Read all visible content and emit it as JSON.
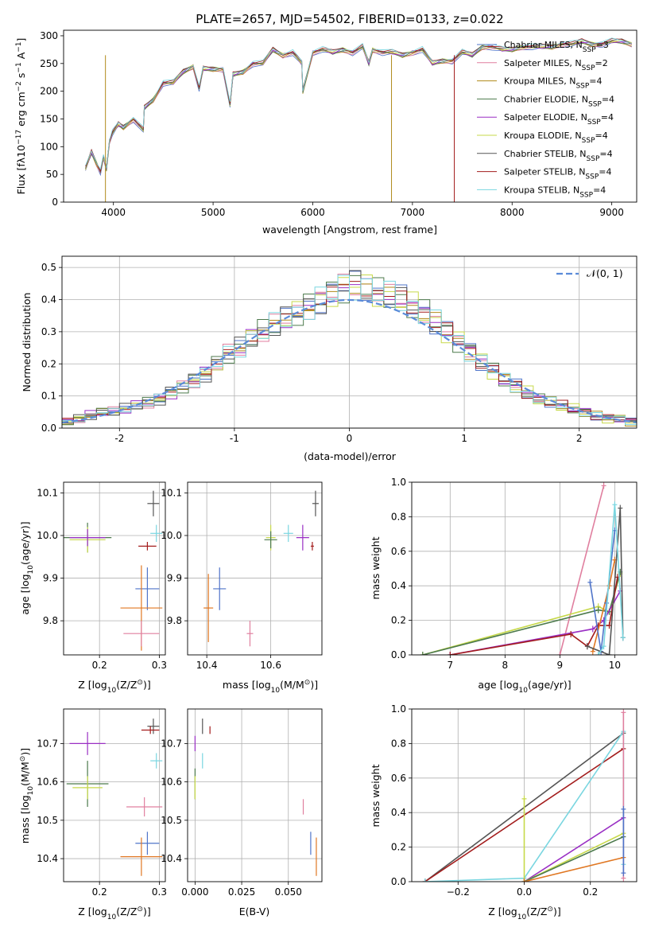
{
  "figure_title": "PLATE=2657, MJD=54502, FIBERID=0133, z=0.022",
  "colors": {
    "chabrier_miles": "#4f74c9",
    "salpeter_miles": "#e07f9f",
    "kroupa_miles": "#b08a1a",
    "chabrier_elodie": "#4c7a4c",
    "salpeter_elodie": "#9a2fc4",
    "kroupa_elodie": "#c7d94a",
    "chabrier_stelib": "#555555",
    "salpeter_stelib": "#a31c1c",
    "kroupa_stelib": "#7ad6e0",
    "gauss": "#5b8bd9",
    "orange": "#e07722"
  },
  "chart_data": [
    {
      "id": "spectrum",
      "type": "line",
      "title": "PLATE=2657, MJD=54502, FIBERID=0133, z=0.022",
      "xlabel": "wavelength [Angstrom, rest frame]",
      "ylabel_parts": [
        "Flux [f",
        "λ",
        "10",
        "−17",
        " erg cm",
        "−2",
        " s",
        "−1",
        " A",
        "−1",
        "]"
      ],
      "xlim": [
        3500,
        9250
      ],
      "ylim": [
        0,
        310
      ],
      "xticks": [
        4000,
        5000,
        6000,
        7000,
        8000,
        9000
      ],
      "yticks": [
        0,
        50,
        100,
        150,
        200,
        250,
        300
      ],
      "x": [
        3720,
        3780,
        3830,
        3870,
        3900,
        3930,
        3960,
        3990,
        4050,
        4100,
        4200,
        4300,
        4310,
        4400,
        4500,
        4600,
        4700,
        4800,
        4860,
        4900,
        5000,
        5100,
        5170,
        5200,
        5300,
        5400,
        5500,
        5600,
        5700,
        5800,
        5890,
        5900,
        6000,
        6100,
        6200,
        6300,
        6400,
        6500,
        6563,
        6600,
        6700,
        6800,
        6900,
        7000,
        7100,
        7200,
        7300,
        7400,
        7500,
        7600,
        7700,
        7800,
        7900,
        8000,
        8100,
        8200,
        8300,
        8400,
        8500,
        8600,
        8700,
        8800,
        8900,
        9000,
        9100,
        9200
      ],
      "y": [
        60,
        90,
        70,
        55,
        80,
        60,
        110,
        125,
        140,
        135,
        150,
        130,
        170,
        185,
        215,
        215,
        235,
        245,
        205,
        240,
        240,
        240,
        175,
        230,
        235,
        250,
        250,
        275,
        265,
        270,
        250,
        200,
        270,
        275,
        270,
        275,
        270,
        280,
        250,
        275,
        270,
        270,
        265,
        270,
        275,
        250,
        255,
        255,
        270,
        265,
        280,
        280,
        275,
        275,
        280,
        280,
        280,
        280,
        285,
        285,
        290,
        285,
        285,
        290,
        290,
        285
      ],
      "dropouts": [
        {
          "series": "Kroupa MILES",
          "x": 3920
        },
        {
          "series": "Kroupa MILES",
          "x": 6790
        },
        {
          "series": "Salpeter STELIB",
          "x": 7420
        }
      ],
      "legend_position": "top-right",
      "legend": [
        {
          "base": "Chabrier MILES, N",
          "sub": "SSP",
          "val": "=3",
          "color": "#4f74c9"
        },
        {
          "base": "Salpeter MILES, N",
          "sub": "SSP",
          "val": "=2",
          "color": "#e07f9f"
        },
        {
          "base": "Kroupa MILES, N",
          "sub": "SSP",
          "val": "=4",
          "color": "#b08a1a"
        },
        {
          "base": "Chabrier ELODIE, N",
          "sub": "SSP",
          "val": "=4",
          "color": "#4c7a4c"
        },
        {
          "base": "Salpeter ELODIE, N",
          "sub": "SSP",
          "val": "=4",
          "color": "#9a2fc4"
        },
        {
          "base": "Kroupa ELODIE, N",
          "sub": "SSP",
          "val": "=4",
          "color": "#c7d94a"
        },
        {
          "base": "Chabrier STELIB, N",
          "sub": "SSP",
          "val": "=4",
          "color": "#555555"
        },
        {
          "base": "Salpeter STELIB, N",
          "sub": "SSP",
          "val": "=4",
          "color": "#a31c1c"
        },
        {
          "base": "Kroupa STELIB, N",
          "sub": "SSP",
          "val": "=4",
          "color": "#7ad6e0"
        }
      ],
      "grid": false
    },
    {
      "id": "residuals",
      "type": "histogram",
      "xlabel": "(data-model)/error",
      "ylabel": "Normed distribution",
      "xlim": [
        -2.5,
        2.5
      ],
      "ylim": [
        0,
        0.535
      ],
      "xticks": [
        -2,
        -1,
        0,
        1,
        2
      ],
      "yticks": [
        0.0,
        0.1,
        0.2,
        0.3,
        0.4,
        0.5
      ],
      "bin_edges_start": -2.5,
      "bin_width": 0.1,
      "histogram": [
        0.02,
        0.03,
        0.04,
        0.05,
        0.05,
        0.06,
        0.07,
        0.08,
        0.09,
        0.11,
        0.13,
        0.15,
        0.17,
        0.2,
        0.23,
        0.25,
        0.28,
        0.3,
        0.32,
        0.34,
        0.36,
        0.38,
        0.4,
        0.42,
        0.44,
        0.45,
        0.44,
        0.42,
        0.41,
        0.4,
        0.38,
        0.36,
        0.33,
        0.3,
        0.27,
        0.24,
        0.21,
        0.18,
        0.15,
        0.13,
        0.11,
        0.09,
        0.08,
        0.07,
        0.06,
        0.05,
        0.04,
        0.03,
        0.03,
        0.02
      ],
      "gauss_legend_parts": [
        "𝒩",
        "(0, 1)"
      ],
      "legend_position": "top-right",
      "grid": true
    },
    {
      "id": "z_age",
      "type": "scatter",
      "xlabel_parts": [
        "Z [log",
        "10",
        "(Z/Z",
        "⊙",
        ")]"
      ],
      "ylabel_parts": [
        "age  [log",
        "10",
        "(age/yr)]"
      ],
      "xlim": [
        0.14,
        0.31
      ],
      "ylim": [
        9.72,
        10.125
      ],
      "xticks": [
        0.2,
        0.3
      ],
      "yticks": [
        9.8,
        9.9,
        10.0,
        10.1
      ],
      "points": [
        {
          "x": 0.29,
          "y": 10.075,
          "xerr": 0.01,
          "yerr": 0.03,
          "color": "#555555"
        },
        {
          "x": 0.295,
          "y": 10.005,
          "xerr": 0.01,
          "yerr": 0.02,
          "color": "#7ad6e0"
        },
        {
          "x": 0.18,
          "y": 9.995,
          "xerr": 0.04,
          "yerr": 0.035,
          "color": "#4c7a4c"
        },
        {
          "x": 0.18,
          "y": 9.99,
          "xerr": 0.03,
          "yerr": 0.03,
          "color": "#c7d94a"
        },
        {
          "x": 0.18,
          "y": 9.995,
          "xerr": 0.03,
          "yerr": 0.02,
          "color": "#9a2fc4"
        },
        {
          "x": 0.28,
          "y": 9.975,
          "xerr": 0.015,
          "yerr": 0.01,
          "color": "#a31c1c"
        },
        {
          "x": 0.28,
          "y": 9.875,
          "xerr": 0.02,
          "yerr": 0.05,
          "color": "#4f74c9"
        },
        {
          "x": 0.27,
          "y": 9.83,
          "xerr": 0.035,
          "yerr": 0.1,
          "color": "#e07722"
        },
        {
          "x": 0.27,
          "y": 9.77,
          "xerr": 0.03,
          "yerr": 0.03,
          "color": "#e07f9f"
        }
      ],
      "grid": true
    },
    {
      "id": "mass_age",
      "type": "scatter",
      "xlabel_parts": [
        "mass [log",
        "10",
        "(M/M",
        "⊙",
        ")]"
      ],
      "ylabel_parts": [],
      "xlim": [
        10.34,
        10.76
      ],
      "ylim": [
        9.72,
        10.125
      ],
      "xticks": [
        10.4,
        10.6
      ],
      "yticks": [
        9.8,
        9.9,
        10.0,
        10.1
      ],
      "points": [
        {
          "x": 10.74,
          "y": 10.075,
          "xerr": 0.01,
          "yerr": 0.03,
          "color": "#555555"
        },
        {
          "x": 10.655,
          "y": 10.005,
          "xerr": 0.015,
          "yerr": 0.02,
          "color": "#7ad6e0"
        },
        {
          "x": 10.6,
          "y": 9.995,
          "xerr": 0.015,
          "yerr": 0.03,
          "color": "#c7d94a"
        },
        {
          "x": 10.6,
          "y": 9.99,
          "xerr": 0.02,
          "yerr": 0.02,
          "color": "#4c7a4c"
        },
        {
          "x": 10.7,
          "y": 9.995,
          "xerr": 0.02,
          "yerr": 0.03,
          "color": "#9a2fc4"
        },
        {
          "x": 10.73,
          "y": 9.975,
          "xerr": 0.005,
          "yerr": 0.01,
          "color": "#a31c1c"
        },
        {
          "x": 10.44,
          "y": 9.875,
          "xerr": 0.02,
          "yerr": 0.05,
          "color": "#4f74c9"
        },
        {
          "x": 10.405,
          "y": 9.83,
          "xerr": 0.015,
          "yerr": 0.08,
          "color": "#e07722"
        },
        {
          "x": 10.535,
          "y": 9.77,
          "xerr": 0.01,
          "yerr": 0.03,
          "color": "#e07f9f"
        }
      ],
      "grid": true
    },
    {
      "id": "age_weight",
      "type": "line",
      "xlabel_parts": [
        "age  [log",
        "10",
        "(age/yr)]"
      ],
      "ylabel": "mass weight",
      "xlim": [
        6.3,
        10.4
      ],
      "ylim": [
        0,
        1.0
      ],
      "xticks": [
        7,
        8,
        9,
        10
      ],
      "yticks": [
        0.0,
        0.2,
        0.4,
        0.6,
        0.8,
        1.0
      ],
      "series": [
        {
          "color": "#e07f9f",
          "x": [
            9.0,
            9.8
          ],
          "y": [
            0.0,
            0.98
          ]
        },
        {
          "color": "#c7d94a",
          "x": [
            6.5,
            9.7,
            9.9,
            10.1
          ],
          "y": [
            0.0,
            0.28,
            0.25,
            0.47
          ]
        },
        {
          "color": "#4c7a4c",
          "x": [
            6.5,
            9.7,
            9.9,
            10.1
          ],
          "y": [
            0.0,
            0.26,
            0.25,
            0.48
          ]
        },
        {
          "color": "#9a2fc4",
          "x": [
            7.0,
            9.6,
            9.8,
            10.1
          ],
          "y": [
            0.0,
            0.15,
            0.2,
            0.37
          ]
        },
        {
          "color": "#a31c1c",
          "x": [
            7.0,
            9.2,
            9.5,
            9.7,
            9.9,
            10.05
          ],
          "y": [
            0.0,
            0.12,
            0.05,
            0.17,
            0.17,
            0.45
          ]
        },
        {
          "color": "#e07722",
          "x": [
            9.6,
            9.9,
            10.0
          ],
          "y": [
            0.02,
            0.4,
            0.55
          ]
        },
        {
          "color": "#4f74c9",
          "x": [
            9.55,
            9.75,
            9.85,
            10.0
          ],
          "y": [
            0.42,
            0.02,
            0.3,
            0.72
          ]
        },
        {
          "color": "#555555",
          "x": [
            9.5,
            9.9,
            10.1,
            10.15
          ],
          "y": [
            0.05,
            0.0,
            0.85,
            0.1
          ]
        },
        {
          "color": "#7ad6e0",
          "x": [
            9.7,
            9.8,
            10.0,
            10.15
          ],
          "y": [
            0.0,
            0.05,
            0.87,
            0.1
          ]
        }
      ],
      "grid": true
    },
    {
      "id": "z_mass",
      "type": "scatter",
      "xlabel_parts": [
        "Z [log",
        "10",
        "(Z/Z",
        "⊙",
        ")]"
      ],
      "ylabel_parts": [
        "mass [log",
        "10",
        "(M/M",
        "⊙",
        ")]"
      ],
      "xlim": [
        0.14,
        0.31
      ],
      "ylim": [
        10.34,
        10.79
      ],
      "xticks": [
        0.2,
        0.3
      ],
      "yticks": [
        10.4,
        10.5,
        10.6,
        10.7
      ],
      "points": [
        {
          "x": 0.29,
          "y": 10.745,
          "xerr": 0.01,
          "yerr": 0.02,
          "color": "#555555"
        },
        {
          "x": 0.285,
          "y": 10.735,
          "xerr": 0.015,
          "yerr": 0.01,
          "color": "#a31c1c"
        },
        {
          "x": 0.18,
          "y": 10.7,
          "xerr": 0.03,
          "yerr": 0.03,
          "color": "#9a2fc4"
        },
        {
          "x": 0.295,
          "y": 10.655,
          "xerr": 0.01,
          "yerr": 0.02,
          "color": "#7ad6e0"
        },
        {
          "x": 0.18,
          "y": 10.595,
          "xerr": 0.035,
          "yerr": 0.06,
          "color": "#4c7a4c"
        },
        {
          "x": 0.18,
          "y": 10.585,
          "xerr": 0.025,
          "yerr": 0.03,
          "color": "#c7d94a"
        },
        {
          "x": 0.275,
          "y": 10.535,
          "xerr": 0.03,
          "yerr": 0.025,
          "color": "#e07f9f"
        },
        {
          "x": 0.28,
          "y": 10.44,
          "xerr": 0.02,
          "yerr": 0.03,
          "color": "#4f74c9"
        },
        {
          "x": 0.27,
          "y": 10.405,
          "xerr": 0.035,
          "yerr": 0.05,
          "color": "#e07722"
        }
      ],
      "grid": true
    },
    {
      "id": "ebv_mass",
      "type": "scatter",
      "xlabel": "E(B-V)",
      "xlim": [
        -0.004,
        0.068
      ],
      "ylim": [
        10.34,
        10.79
      ],
      "xticks": [
        0.0,
        0.025,
        0.05
      ],
      "xtick_labels": [
        "0.000",
        "0.025",
        "0.050"
      ],
      "yticks": [
        10.4,
        10.5,
        10.6,
        10.7
      ],
      "points": [
        {
          "x": 0.004,
          "y": 10.745,
          "xerr": 0,
          "yerr": 0.02,
          "color": "#555555"
        },
        {
          "x": 0.008,
          "y": 10.735,
          "xerr": 0,
          "yerr": 0.01,
          "color": "#a31c1c"
        },
        {
          "x": 0.0,
          "y": 10.7,
          "xerr": 0,
          "yerr": 0.02,
          "color": "#9a2fc4"
        },
        {
          "x": 0.004,
          "y": 10.655,
          "xerr": 0,
          "yerr": 0.02,
          "color": "#7ad6e0"
        },
        {
          "x": 0.0,
          "y": 10.595,
          "xerr": 0,
          "yerr": 0.04,
          "color": "#4c7a4c"
        },
        {
          "x": 0.0,
          "y": 10.585,
          "xerr": 0,
          "yerr": 0.03,
          "color": "#c7d94a"
        },
        {
          "x": 0.058,
          "y": 10.535,
          "xerr": 0,
          "yerr": 0.02,
          "color": "#e07f9f"
        },
        {
          "x": 0.062,
          "y": 10.44,
          "xerr": 0,
          "yerr": 0.03,
          "color": "#4f74c9"
        },
        {
          "x": 0.065,
          "y": 10.405,
          "xerr": 0,
          "yerr": 0.05,
          "color": "#e07722"
        }
      ],
      "grid": true
    },
    {
      "id": "z_weight",
      "type": "line",
      "xlabel_parts": [
        "Z [log",
        "10",
        "(Z/Z",
        "⊙",
        ")]"
      ],
      "ylabel": "mass weight",
      "xlim": [
        -0.34,
        0.34
      ],
      "ylim": [
        0,
        1.0
      ],
      "xticks": [
        -0.2,
        0.0,
        0.2
      ],
      "xtick_labels": [
        "−0.2",
        "0.0",
        "0.2"
      ],
      "yticks": [
        0.0,
        0.2,
        0.4,
        0.6,
        0.8,
        1.0
      ],
      "series": [
        {
          "color": "#555555",
          "x": [
            -0.3,
            0.3
          ],
          "y": [
            0.0,
            0.86
          ]
        },
        {
          "color": "#a31c1c",
          "x": [
            -0.3,
            0.3
          ],
          "y": [
            0.0,
            0.77
          ]
        },
        {
          "color": "#7ad6e0",
          "x": [
            -0.3,
            0.0,
            0.3,
            0.3
          ],
          "y": [
            0.0,
            0.02,
            0.87,
            0.1
          ]
        },
        {
          "color": "#9a2fc4",
          "x": [
            0.0,
            0.3
          ],
          "y": [
            0.0,
            0.37
          ]
        },
        {
          "color": "#c7d94a",
          "x": [
            0.0,
            0.0,
            0.3
          ],
          "y": [
            0.48,
            0.0,
            0.28
          ]
        },
        {
          "color": "#4c7a4c",
          "x": [
            0.0,
            0.3
          ],
          "y": [
            0.0,
            0.26
          ]
        },
        {
          "color": "#e07722",
          "x": [
            0.0,
            0.3
          ],
          "y": [
            0.0,
            0.14
          ]
        },
        {
          "color": "#e07f9f",
          "x": [
            0.3,
            0.3
          ],
          "y": [
            0.02,
            0.98
          ]
        },
        {
          "color": "#4f74c9",
          "x": [
            0.3,
            0.3
          ],
          "y": [
            0.05,
            0.42
          ]
        }
      ],
      "grid": true
    }
  ]
}
